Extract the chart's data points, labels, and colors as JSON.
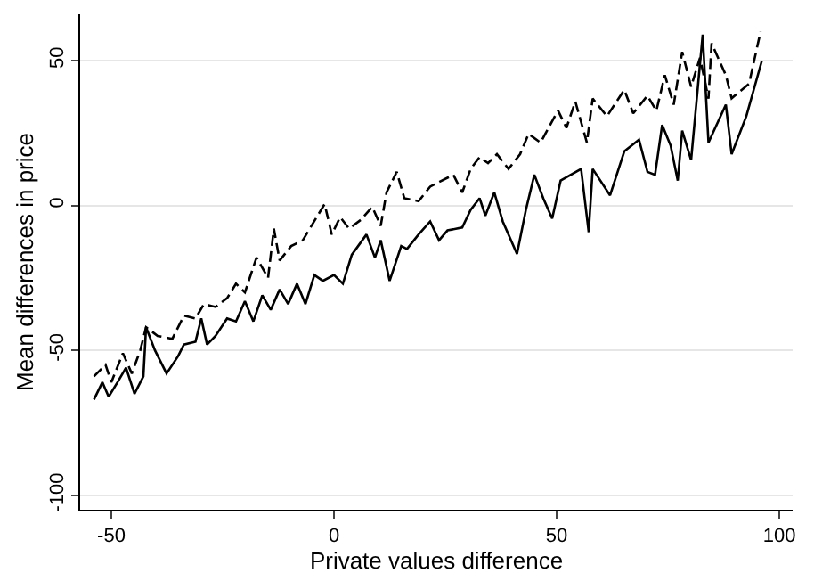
{
  "chart_data": {
    "type": "line",
    "xlabel": "Private values difference",
    "ylabel": "Mean differences in price",
    "xlim": [
      -57,
      103
    ],
    "ylim": [
      -105,
      66
    ],
    "xticks": [
      -50,
      0,
      50,
      100
    ],
    "yticks": [
      -100,
      -50,
      0,
      50
    ],
    "grid": "y",
    "marker": "none",
    "series": [
      {
        "color": "#000000",
        "line_style": "solid",
        "x": [
          -53.9,
          -52,
          -50.6,
          -48.6,
          -46.7,
          -44.8,
          -42.8,
          -42.2,
          -40.2,
          -37.6,
          -35,
          -33.7,
          -31.1,
          -29.8,
          -28.5,
          -26.6,
          -24,
          -22,
          -20,
          -18.1,
          -16.1,
          -14.2,
          -12.2,
          -10.3,
          -8.3,
          -6.4,
          -4.4,
          -2.5,
          0,
          2,
          4,
          7.3,
          9.2,
          10.5,
          12.5,
          15.1,
          16.4,
          19,
          21.6,
          23.6,
          25.5,
          28.8,
          30.7,
          32.7,
          34,
          36,
          37.9,
          41.1,
          43.1,
          45,
          47,
          49,
          50.9,
          55.5,
          57.2,
          58.1,
          62,
          65.2,
          68.5,
          70.4,
          72.1,
          73.7,
          75.6,
          77.2,
          78.2,
          80.2,
          82.8,
          84.1,
          88,
          89.3,
          92.6,
          96.1
        ],
        "values": [
          -67,
          -61,
          -66,
          -61,
          -56,
          -65,
          -59,
          -42,
          -50,
          -58,
          -52,
          -48,
          -47,
          -39,
          -48,
          -45,
          -39,
          -40,
          -33,
          -40,
          -31,
          -36,
          -29,
          -34,
          -27,
          -34,
          -24,
          -26,
          -24,
          -27,
          -17,
          -10,
          -18,
          -12,
          -26,
          -14,
          -15,
          -10,
          -5.5,
          -12,
          -8.6,
          -7.6,
          -1.5,
          2.5,
          -3.5,
          4.5,
          -5.5,
          -16.7,
          -1.5,
          10.6,
          2.5,
          -4.5,
          8.6,
          12.6,
          -9.2,
          12.6,
          3.5,
          18.7,
          22.7,
          11.6,
          10.6,
          27.8,
          20.7,
          8.6,
          25.8,
          15.7,
          59,
          21.7,
          34.8,
          17.7,
          30.8,
          50
        ]
      },
      {
        "color": "#000000",
        "line_style": "dashed",
        "x": [
          -53.9,
          -51.3,
          -50,
          -47.4,
          -45.4,
          -43.5,
          -42.2,
          -39.6,
          -36.3,
          -33.7,
          -31.1,
          -29.2,
          -26.6,
          -24,
          -22,
          -20,
          -17.4,
          -14.8,
          -13.5,
          -12.2,
          -9.6,
          -7,
          -2.1,
          -0.5,
          1.4,
          3.4,
          6,
          8.6,
          10.5,
          11.8,
          14.1,
          15.8,
          19,
          21.6,
          26.8,
          28.8,
          30.7,
          32.7,
          34.6,
          36.6,
          39.2,
          41.8,
          43.7,
          46.4,
          50.3,
          52.2,
          54.2,
          56.8,
          58.1,
          61.3,
          65.2,
          67.2,
          70.4,
          72.4,
          74.3,
          76.3,
          78.2,
          80.2,
          82.2,
          84.1,
          84.8,
          88,
          89.3,
          93.2,
          95.8
        ],
        "values": [
          -59,
          -55,
          -61,
          -51,
          -58,
          -50,
          -42,
          -45,
          -46,
          -38,
          -39,
          -34,
          -35,
          -32,
          -27,
          -30,
          -18,
          -25,
          -8,
          -19,
          -14,
          -12,
          0.5,
          -10,
          -4,
          -8,
          -5,
          -0.5,
          -7,
          4.5,
          11.6,
          2.5,
          1.5,
          6.5,
          10.6,
          4.5,
          12.6,
          16.7,
          14.6,
          17.7,
          12.6,
          17.7,
          24.7,
          21.7,
          32.8,
          26.8,
          35.9,
          21.7,
          36.9,
          30.8,
          39.9,
          31.8,
          37.9,
          32.7,
          45,
          34.8,
          53,
          41,
          51,
          36.9,
          56,
          45,
          37,
          42,
          60
        ]
      }
    ]
  }
}
